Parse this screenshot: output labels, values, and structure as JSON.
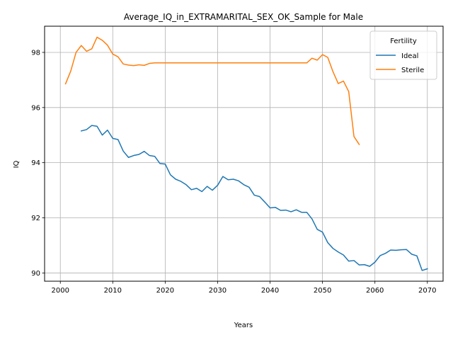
{
  "chart_data": {
    "type": "line",
    "title": "Average_IQ_in_EXTRAMARITAL_SEX_OK_Sample for Male",
    "xlabel": "Years",
    "ylabel": "IQ",
    "xlim": [
      1997,
      2073
    ],
    "ylim": [
      89.7,
      98.95
    ],
    "xticks": [
      2000,
      2010,
      2020,
      2030,
      2040,
      2050,
      2060,
      2070
    ],
    "yticks": [
      90,
      92,
      94,
      96,
      98
    ],
    "grid": true,
    "legend": {
      "title": "Fertility",
      "placement": "top-right"
    },
    "series": [
      {
        "name": "Ideal",
        "color": "#1f77b4",
        "x": [
          2004,
          2005,
          2006,
          2007,
          2008,
          2009,
          2010,
          2011,
          2012,
          2013,
          2014,
          2015,
          2016,
          2017,
          2018,
          2019,
          2020,
          2021,
          2022,
          2023,
          2024,
          2025,
          2026,
          2027,
          2028,
          2029,
          2030,
          2031,
          2032,
          2033,
          2034,
          2035,
          2036,
          2037,
          2038,
          2039,
          2040,
          2041,
          2042,
          2043,
          2044,
          2045,
          2046,
          2047,
          2048,
          2049,
          2050,
          2051,
          2052,
          2053,
          2054,
          2055,
          2056,
          2057,
          2058,
          2059,
          2060,
          2061,
          2062,
          2063,
          2064,
          2065,
          2066,
          2067,
          2068,
          2069,
          2070
        ],
        "y": [
          95.15,
          95.2,
          95.35,
          95.32,
          95.0,
          95.18,
          94.88,
          94.84,
          94.42,
          94.19,
          94.26,
          94.3,
          94.41,
          94.26,
          94.23,
          93.97,
          93.95,
          93.56,
          93.4,
          93.32,
          93.2,
          93.02,
          93.07,
          92.95,
          93.14,
          93.0,
          93.18,
          93.5,
          93.38,
          93.4,
          93.34,
          93.2,
          93.11,
          92.82,
          92.77,
          92.57,
          92.36,
          92.38,
          92.27,
          92.28,
          92.22,
          92.29,
          92.2,
          92.2,
          91.96,
          91.58,
          91.48,
          91.1,
          90.89,
          90.76,
          90.65,
          90.43,
          90.45,
          90.29,
          90.3,
          90.24,
          90.39,
          90.63,
          90.71,
          90.83,
          90.82,
          90.84,
          90.85,
          90.68,
          90.62,
          90.09,
          90.15
        ]
      },
      {
        "name": "Sterile",
        "color": "#ff7f0e",
        "x": [
          2001,
          2002,
          2003,
          2004,
          2005,
          2006,
          2007,
          2008,
          2009,
          2010,
          2011,
          2012,
          2013,
          2014,
          2015,
          2016,
          2017,
          2018,
          2019,
          2020,
          2021,
          2022,
          2023,
          2024,
          2025,
          2026,
          2027,
          2028,
          2029,
          2030,
          2031,
          2032,
          2033,
          2034,
          2035,
          2036,
          2037,
          2038,
          2039,
          2040,
          2041,
          2042,
          2043,
          2044,
          2045,
          2046,
          2047,
          2048,
          2049,
          2050,
          2051,
          2052,
          2053,
          2054,
          2055,
          2056,
          2057
        ],
        "y": [
          96.86,
          97.33,
          98.0,
          98.25,
          98.04,
          98.13,
          98.55,
          98.44,
          98.26,
          97.94,
          97.84,
          97.58,
          97.54,
          97.52,
          97.55,
          97.53,
          97.6,
          97.62,
          97.62,
          97.62,
          97.62,
          97.62,
          97.62,
          97.62,
          97.62,
          97.62,
          97.62,
          97.62,
          97.62,
          97.62,
          97.62,
          97.62,
          97.62,
          97.62,
          97.62,
          97.62,
          97.62,
          97.62,
          97.62,
          97.62,
          97.62,
          97.62,
          97.62,
          97.62,
          97.62,
          97.62,
          97.62,
          97.79,
          97.72,
          97.92,
          97.82,
          97.3,
          96.87,
          96.96,
          96.58,
          94.95,
          94.66
        ]
      }
    ]
  }
}
